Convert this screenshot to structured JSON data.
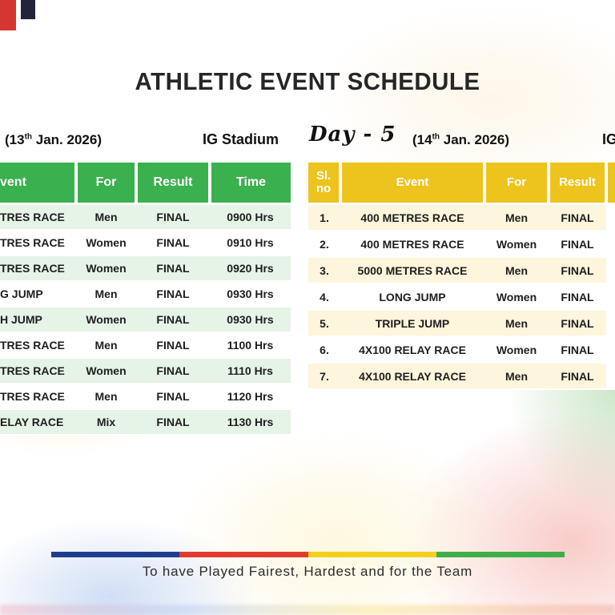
{
  "title": "ATHLETIC EVENT SCHEDULE",
  "day4": {
    "date": {
      "open": "(13",
      "sup": "th",
      "rest": " Jan. 2026)"
    },
    "venue": "IG Stadium",
    "headers": {
      "event": "vent",
      "for": "For",
      "result": "Result",
      "time": "Time"
    },
    "rows": [
      {
        "event": "TRES RACE",
        "for": "Men",
        "result": "FINAL",
        "time": "0900 Hrs"
      },
      {
        "event": "TRES RACE",
        "for": "Women",
        "result": "FINAL",
        "time": "0910 Hrs"
      },
      {
        "event": "TRES RACE",
        "for": "Women",
        "result": "FINAL",
        "time": "0920 Hrs"
      },
      {
        "event": "G JUMP",
        "for": "Men",
        "result": "FINAL",
        "time": "0930 Hrs"
      },
      {
        "event": "H JUMP",
        "for": "Women",
        "result": "FINAL",
        "time": "0930 Hrs"
      },
      {
        "event": "TRES RACE",
        "for": "Men",
        "result": "FINAL",
        "time": "1100 Hrs"
      },
      {
        "event": "TRES RACE",
        "for": "Women",
        "result": "FINAL",
        "time": "1110 Hrs"
      },
      {
        "event": "TRES RACE",
        "for": "Men",
        "result": "FINAL",
        "time": "1120 Hrs"
      },
      {
        "event": "ELAY RACE",
        "for": "Mix",
        "result": "FINAL",
        "time": "1130 Hrs"
      }
    ]
  },
  "day5": {
    "label": "Day - 5",
    "date": {
      "open": "(14",
      "sup": "th",
      "rest": " Jan. 2026)"
    },
    "venue": "IG",
    "headers": {
      "sl1": "Sl.",
      "sl2": "no",
      "event": "Event",
      "for": "For",
      "result": "Result"
    },
    "rows": [
      {
        "no": "1.",
        "event": "400 METRES RACE",
        "for": "Men",
        "result": "FINAL"
      },
      {
        "no": "2.",
        "event": "400 METRES RACE",
        "for": "Women",
        "result": "FINAL"
      },
      {
        "no": "3.",
        "event": "5000 METRES RACE",
        "for": "Men",
        "result": "FINAL"
      },
      {
        "no": "4.",
        "event": "LONG JUMP",
        "for": "Women",
        "result": "FINAL"
      },
      {
        "no": "5.",
        "event": "TRIPLE JUMP",
        "for": "Men",
        "result": "FINAL"
      },
      {
        "no": "6.",
        "event": "4X100 RELAY RACE",
        "for": "Women",
        "result": "FINAL"
      },
      {
        "no": "7.",
        "event": "4X100 RELAY RACE",
        "for": "Men",
        "result": "FINAL"
      }
    ]
  },
  "footer": {
    "motto": "To have Played Fairest, Hardest and for the Team",
    "stripe": [
      "#1e3d8f",
      "#e23a2e",
      "#f2d11e",
      "#3fae49"
    ]
  },
  "colors": {
    "green_header": "#3bb04e",
    "yellow_header": "#edc31d",
    "green_row_tint": "#e6f3e7",
    "cream_row_tint": "#fdf5dc"
  }
}
